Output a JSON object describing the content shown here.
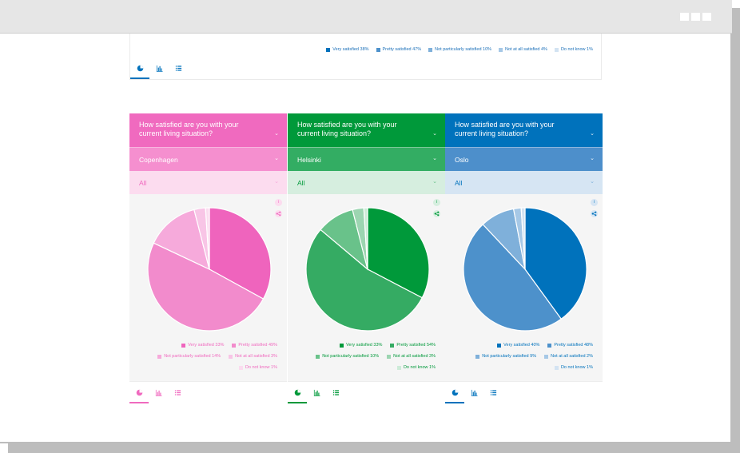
{
  "colors": {
    "pink": [
      "#ef64bd",
      "#f28bcc",
      "#f6aadb",
      "#f8c5e6",
      "#fbdcef"
    ],
    "green": [
      "#00993a",
      "#35ab63",
      "#69c28a",
      "#9cd5b1",
      "#cdebd8"
    ],
    "blue": [
      "#0072bc",
      "#4d91cb",
      "#7fb0da",
      "#a6c8e6",
      "#d3e3f2"
    ],
    "pink_head": "#f06abf",
    "pink_city": "#f58fcf",
    "pink_filter": "#fcdcef",
    "green_head": "#00993a",
    "green_city": "#33ad63",
    "green_filter": "#d6eedf",
    "blue_head": "#0072bc",
    "blue_city": "#4d8fcb",
    "blue_filter": "#d6e5f3"
  },
  "top_card": {
    "legend": [
      {
        "label": "Very satisfied 38%",
        "color": "#0072bc"
      },
      {
        "label": "Pretty satisfied 47%",
        "color": "#4d91cb"
      },
      {
        "label": "Not particularly satisfied 10%",
        "color": "#7fb0da"
      },
      {
        "label": "Not at all satisfied 4%",
        "color": "#a6c8e6"
      },
      {
        "label": "Do not know 1%",
        "color": "#d3e3f2"
      }
    ],
    "tabs": [
      "pie-chart-icon",
      "bar-chart-icon",
      "list-icon"
    ]
  },
  "panels": [
    {
      "question": "How satisfied are you with your current living situation?",
      "city": "Copenhagen",
      "filter": "All",
      "theme": "pink",
      "slices": [
        33,
        49,
        14,
        3,
        1
      ],
      "legend_rows": [
        [
          "Very satisfied 33%",
          "Pretty satisfied 49%"
        ],
        [
          "Not particularly satisfied 14%",
          "Not at all satisfied 3%"
        ],
        [
          "Do not know 1%"
        ]
      ],
      "info_icon": "i",
      "share_icon": "share-icon"
    },
    {
      "question": "How satisfied are you with your current living situation?",
      "city": "Helsinki",
      "filter": "All",
      "theme": "green",
      "slices": [
        33,
        54,
        10,
        3,
        1
      ],
      "legend_rows": [
        [
          "Very satisfied 33%",
          "Pretty satisfied 54%"
        ],
        [
          "Not particularly satisfied 10%",
          "Not at all satisfied 3%"
        ],
        [
          "Do not know 1%"
        ]
      ],
      "info_icon": "i",
      "share_icon": "share-icon"
    },
    {
      "question": "How satisfied are you with your current living situation?",
      "city": "Oslo",
      "filter": "All",
      "theme": "blue",
      "slices": [
        40,
        48,
        9,
        2,
        1
      ],
      "legend_rows": [
        [
          "Very satisfied 40%",
          "Pretty satisfied 48%"
        ],
        [
          "Not particularly satisfied 9%",
          "Not at all satisfied 2%"
        ],
        [
          "Do not know 1%"
        ]
      ],
      "info_icon": "i",
      "share_icon": "share-icon"
    }
  ]
}
